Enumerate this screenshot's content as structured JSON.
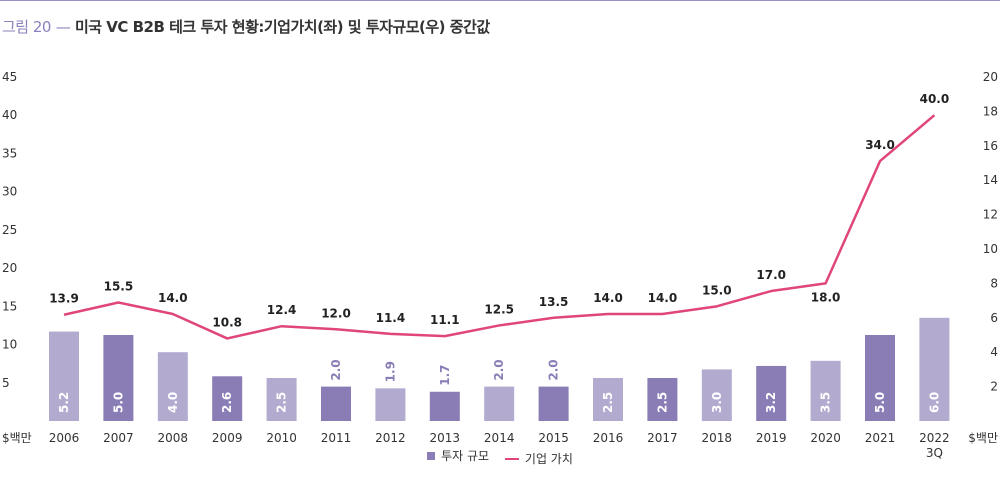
{
  "title": {
    "figure_no": "그림 20",
    "dash": "—",
    "text": "미국 VC B2B 테크 투자 현황:기업가치(좌) 및 투자규모(우) 중간값"
  },
  "colors": {
    "bar_dark": "#8a7db5",
    "bar_light": "#b3aad0",
    "line": "#e0467a",
    "bar_label_light": "#ffffff",
    "bar_label_dark": "#8a7db5"
  },
  "chart_data": {
    "type": "bar+line",
    "categories": [
      "2006",
      "2007",
      "2008",
      "2009",
      "2010",
      "2011",
      "2012",
      "2013",
      "2014",
      "2015",
      "2016",
      "2017",
      "2018",
      "2019",
      "2020",
      "2021",
      "2022 3Q"
    ],
    "x_tick_lines": [
      [
        "2006"
      ],
      [
        "2007"
      ],
      [
        "2008"
      ],
      [
        "2009"
      ],
      [
        "2010"
      ],
      [
        "2011"
      ],
      [
        "2012"
      ],
      [
        "2013"
      ],
      [
        "2014"
      ],
      [
        "2015"
      ],
      [
        "2016"
      ],
      [
        "2017"
      ],
      [
        "2018"
      ],
      [
        "2019"
      ],
      [
        "2020"
      ],
      [
        "2021"
      ],
      [
        "2022",
        "3Q"
      ]
    ],
    "series": [
      {
        "name": "투자 규모",
        "type": "bar",
        "axis": "right",
        "values": [
          5.2,
          5.0,
          4.0,
          2.6,
          2.5,
          2.0,
          1.9,
          1.7,
          2.0,
          2.0,
          2.5,
          2.5,
          3.0,
          3.2,
          3.5,
          5.0,
          6.0
        ],
        "labels": [
          "5.2",
          "5.0",
          "4.0",
          "2.6",
          "2.5",
          "2.0",
          "1.9",
          "1.7",
          "2.0",
          "2.0",
          "2.5",
          "2.5",
          "3.0",
          "3.2",
          "3.5",
          "5.0",
          "6.0"
        ],
        "shade": [
          "light",
          "dark",
          "light",
          "dark",
          "light",
          "dark",
          "light",
          "dark",
          "light",
          "dark",
          "light",
          "dark",
          "light",
          "dark",
          "light",
          "dark",
          "light"
        ]
      },
      {
        "name": "기업 가치",
        "type": "line",
        "axis": "left",
        "values": [
          13.9,
          15.5,
          14.0,
          10.8,
          12.4,
          12.0,
          11.4,
          11.1,
          12.5,
          13.5,
          14.0,
          14.0,
          15.0,
          17.0,
          18.0,
          34.0,
          40.0
        ],
        "labels": [
          "13.9",
          "15.5",
          "14.0",
          "10.8",
          "12.4",
          "12.0",
          "11.4",
          "11.1",
          "12.5",
          "13.5",
          "14.0",
          "14.0",
          "15.0",
          "17.0",
          "18.0",
          "34.0",
          "40.0"
        ]
      }
    ],
    "left_axis": {
      "unit_label": "$백만",
      "ticks": [
        "45",
        "40",
        "35",
        "30",
        "25",
        "20",
        "15",
        "10",
        "5"
      ],
      "ylim": [
        0,
        45
      ]
    },
    "right_axis": {
      "unit_label": "$백만",
      "ticks": [
        "20",
        "18",
        "16",
        "14",
        "12",
        "10",
        "8",
        "6",
        "4",
        "2"
      ],
      "ylim": [
        0,
        20
      ]
    },
    "grid": false,
    "legend_position": "bottom-center"
  },
  "legend": {
    "bar_label": "투자 규모",
    "line_label": "기업 가치"
  }
}
